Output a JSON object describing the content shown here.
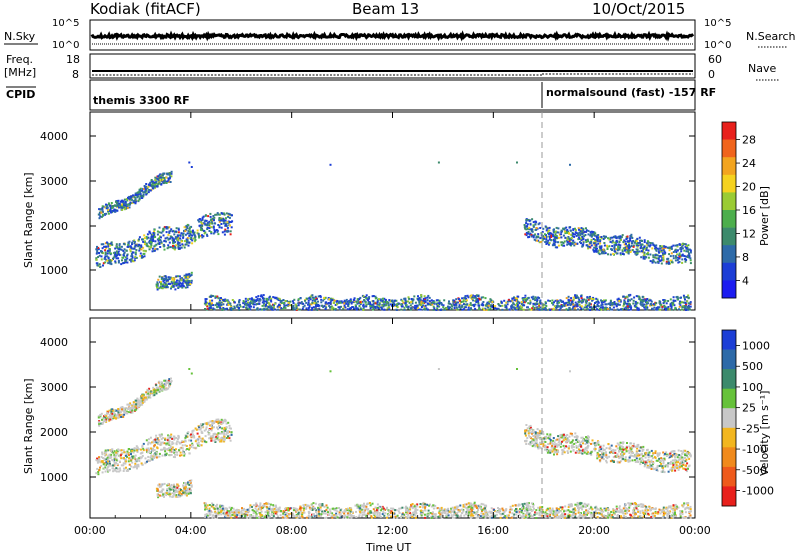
{
  "header": {
    "station": "Kodiak (fitACF)",
    "beam": "Beam 13",
    "date": "10/Oct/2015"
  },
  "top_panels": {
    "nsky_label": "N.Sky",
    "nsearch_label": "N.Search",
    "freq_label": "Freq.",
    "freq_unit": "[MHz]",
    "nave_label": "Nave",
    "cpid_label": "CPID",
    "left_ticks_count": [
      "10^5",
      "10^0"
    ],
    "right_ticks_count": [
      "10^5",
      "10^0"
    ],
    "left_ticks_freq": [
      "18",
      "8"
    ],
    "right_ticks_nave": [
      "60",
      "0"
    ],
    "cpid_segments": [
      {
        "label": "themis 3300 RF"
      },
      {
        "label": "normalsound (fast) -157 RF"
      }
    ]
  },
  "chart_data": [
    {
      "type": "heatmap",
      "ylabel": "Slant Range [km]",
      "y_ticks": [
        "4000",
        "3000",
        "2000",
        "1000"
      ],
      "ylim": [
        200,
        4600
      ],
      "xlim": [
        0,
        24
      ],
      "colorbar_label": "Power [dB]",
      "colorbar_ticks": [
        "28",
        "24",
        "20",
        "16",
        "12",
        "8",
        "4"
      ],
      "colorbar_colors": [
        "#e8201c",
        "#f0641c",
        "#f2a41f",
        "#f5d21f",
        "#9acb34",
        "#4cae4c",
        "#3c8a6c",
        "#2d6aa8",
        "#1c3ed6",
        "#1c1cf0"
      ],
      "scatter_regions": [
        {
          "t_start": 0.2,
          "t_end": 5.6,
          "r_start": 1350,
          "r_end": 2200,
          "thickness": 250
        },
        {
          "t_start": 0.3,
          "t_end": 3.2,
          "r_start": 2300,
          "r_end": 3200,
          "thickness": 120
        },
        {
          "t_start": 2.6,
          "t_end": 4.0,
          "r_start": 750,
          "r_end": 950,
          "thickness": 150
        },
        {
          "t_start": 17.2,
          "t_end": 23.8,
          "r_start": 2000,
          "r_end": 1400,
          "thickness": 220
        },
        {
          "t_start": 4.5,
          "t_end": 23.8,
          "r_start": 300,
          "r_end": 300,
          "thickness": 200
        }
      ]
    },
    {
      "type": "heatmap",
      "ylabel": "Slant Range [km]",
      "y_ticks": [
        "4000",
        "3000",
        "2000",
        "1000"
      ],
      "ylim": [
        200,
        4600
      ],
      "xlim": [
        0,
        24
      ],
      "colorbar_label": "Velocity [m s⁻¹]",
      "colorbar_ticks": [
        "1000",
        "500",
        "100",
        "25",
        "-25",
        "-100",
        "-500",
        "-1000"
      ],
      "colorbar_colors": [
        "#1c3ed6",
        "#2d6aa8",
        "#3c8a6c",
        "#66c23a",
        "#c8c8c8",
        "#f2b61f",
        "#f08a1c",
        "#ee5a1c",
        "#e8201c"
      ],
      "x_ticks": [
        "00:00",
        "04:00",
        "08:00",
        "12:00",
        "16:00",
        "20:00",
        "00:00"
      ],
      "xlabel": "Time UT"
    }
  ]
}
